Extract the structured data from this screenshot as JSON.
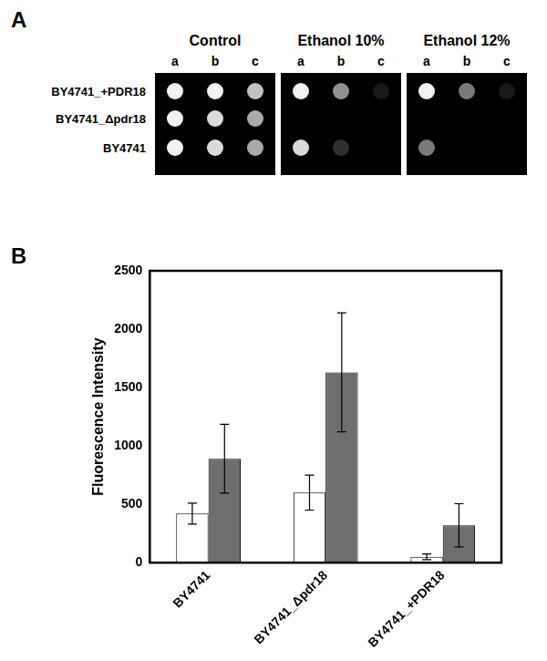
{
  "panel_a": {
    "label": "A",
    "conditions": [
      "Control",
      "Ethanol 10%",
      "Ethanol 12%"
    ],
    "dilutions": [
      "a",
      "b",
      "c"
    ],
    "strains": [
      "BY4741_+PDR18",
      "BY4741_Δpdr18",
      "BY4741"
    ],
    "growth": [
      [
        [
          1,
          1,
          0.8
        ],
        [
          1,
          0.9,
          0.7
        ],
        [
          1,
          0.9,
          0.7
        ]
      ],
      [
        [
          1,
          0.6,
          0.1
        ],
        [
          0,
          0,
          0
        ],
        [
          0.9,
          0.2,
          0
        ]
      ],
      [
        [
          1,
          0.5,
          0.1
        ],
        [
          0,
          0,
          0
        ],
        [
          0.5,
          0,
          0
        ]
      ]
    ]
  },
  "chart_data": {
    "type": "bar",
    "panel_label": "B",
    "categories": [
      "BY4741",
      "BY4741_Δpdr18",
      "BY4741_+PDR18"
    ],
    "y_label": "Fluorescence Intensity",
    "series": [
      {
        "color": "#ffffff",
        "values": [
          420,
          600,
          50
        ],
        "errors": [
          90,
          150,
          25
        ]
      },
      {
        "color": "#6e6e6e",
        "values": [
          890,
          1630,
          320
        ],
        "errors": [
          295,
          510,
          185
        ]
      }
    ],
    "ylim": [
      0,
      2500
    ],
    "yticks": [
      0,
      500,
      1000,
      1500,
      2000,
      2500
    ],
    "grid": false
  }
}
